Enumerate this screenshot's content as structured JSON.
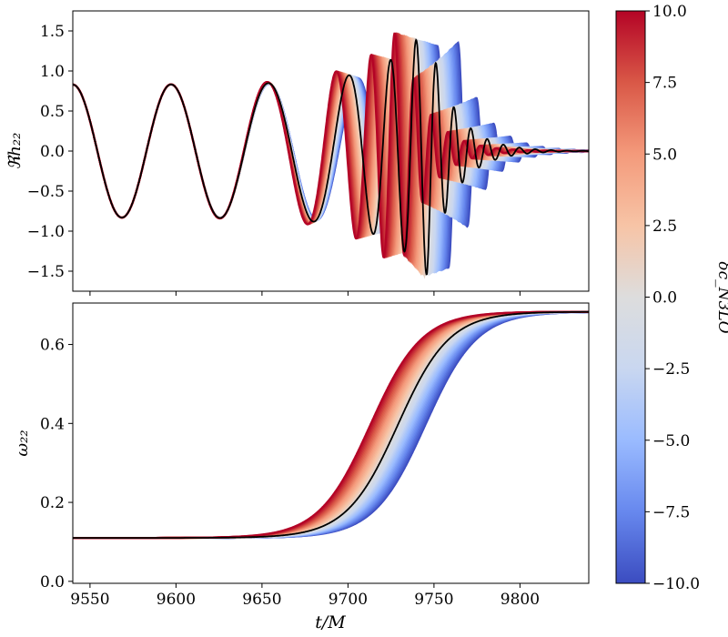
{
  "chart_data": [
    {
      "type": "line",
      "title": "",
      "xlabel": "",
      "ylabel": "ℜh₂₂",
      "xlim": [
        9540,
        9840
      ],
      "ylim": [
        -1.75,
        1.75
      ],
      "yticks": [
        -1.5,
        -1.0,
        -0.5,
        0.0,
        0.5,
        1.0,
        1.5
      ],
      "ytick_labels": [
        "−1.5",
        "−1.0",
        "−0.5",
        "0.0",
        "0.5",
        "1.0",
        "1.5"
      ],
      "xticks": [
        9550,
        9600,
        9650,
        9700,
        9750,
        9800
      ],
      "grid": false,
      "parameter": "δc_N3LO",
      "param_values": [
        -10,
        -7.5,
        -5,
        -2.5,
        0,
        2.5,
        5,
        7.5,
        10
      ],
      "merger_time": {
        "at_param_minus10": 9762,
        "at_param_0": 9746,
        "at_param_plus10": 9730
      },
      "reference_series": {
        "color": "#000000",
        "param": 0
      },
      "peak_amplitude": 1.55
    },
    {
      "type": "line",
      "title": "",
      "xlabel": "t/M",
      "ylabel": "ω₂₂",
      "xlim": [
        9540,
        9840
      ],
      "ylim": [
        -0.005,
        0.705
      ],
      "yticks": [
        0.0,
        0.2,
        0.4,
        0.6
      ],
      "ytick_labels": [
        "0.0",
        "0.2",
        "0.4",
        "0.6"
      ],
      "xticks": [
        9550,
        9600,
        9650,
        9700,
        9750,
        9800
      ],
      "xtick_labels": [
        "9550",
        "9600",
        "9650",
        "9700",
        "9750",
        "9800"
      ],
      "grid": false,
      "omega_initial": 0.11,
      "omega_final": 0.683,
      "reference_series": {
        "color": "#000000",
        "param": 0
      }
    }
  ],
  "colorbar": {
    "label": "δc_N3LO",
    "colormap": "coolwarm",
    "range": [
      -10,
      10
    ],
    "ticks": [
      -10,
      -7.5,
      -5,
      -2.5,
      0,
      2.5,
      5,
      7.5,
      10
    ],
    "tick_labels": [
      "−10.0",
      "−7.5",
      "−5.0",
      "−2.5",
      "0.0",
      "2.5",
      "5.0",
      "7.5",
      "10.0"
    ],
    "colors": [
      "#3b4cc0",
      "#6788ee",
      "#9abbff",
      "#c9d7f0",
      "#dddddd",
      "#f7c4a6",
      "#f49a7b",
      "#d95847",
      "#b40426"
    ]
  }
}
